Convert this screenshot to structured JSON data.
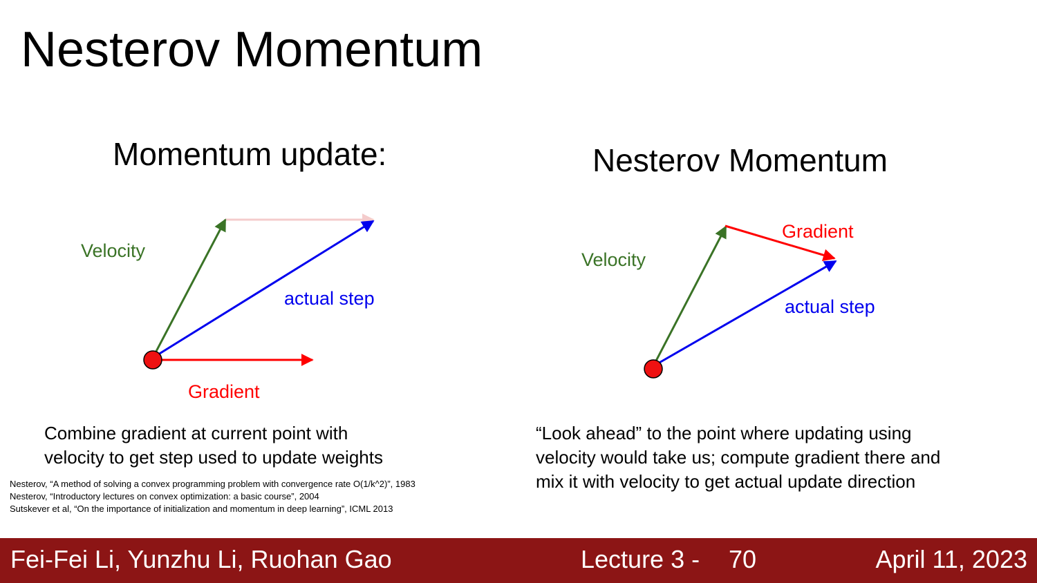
{
  "slide": {
    "title": "Nesterov Momentum"
  },
  "left_panel": {
    "heading": "Momentum update:",
    "labels": {
      "velocity": "Velocity",
      "actual_step": "actual step",
      "gradient": "Gradient"
    },
    "caption_lines": [
      "Combine gradient at current point with",
      "velocity to get step used to update weights"
    ]
  },
  "right_panel": {
    "heading": "Nesterov Momentum",
    "labels": {
      "velocity": "Velocity",
      "gradient": "Gradient",
      "actual_step": "actual step"
    },
    "caption_lines": [
      "“Look ahead” to the point where updating using",
      "velocity would take us; compute gradient there and",
      "mix it with velocity to get actual update direction"
    ]
  },
  "references": [
    "Nesterov, “A method of solving a convex programming problem with convergence rate O(1/k^2)”, 1983",
    "Nesterov, “Introductory lectures on convex optimization: a basic course”, 2004",
    "Sutskever et al, “On the importance of initialization and momentum in deep learning”, ICML 2013"
  ],
  "footer": {
    "authors": "Fei-Fei Li, Yunzhu Li, Ruohan Gao",
    "lecture": "Lecture 3 -",
    "page": "70",
    "date": "April 11, 2023"
  },
  "colors": {
    "velocity": "#3a7326",
    "gradient": "#ff0000",
    "actual_step": "#0000ee",
    "faded_gradient": "#f4cccc",
    "footer_bg": "#8c1515",
    "point_fill": "#ee1111"
  }
}
